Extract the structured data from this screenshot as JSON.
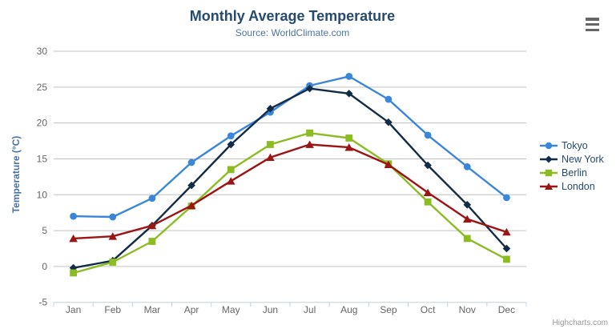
{
  "ui": {
    "menu_icon": "hamburger-icon"
  },
  "chart_data": {
    "type": "line",
    "title": "Monthly Average Temperature",
    "subtitle": "Source: WorldClimate.com",
    "xlabel": "",
    "ylabel": "Temperature (°C)",
    "ylim": [
      -5,
      30
    ],
    "ytick_interval": 5,
    "grid": true,
    "legend_position": "right",
    "credits": "Highcharts.com",
    "categories": [
      "Jan",
      "Feb",
      "Mar",
      "Apr",
      "May",
      "Jun",
      "Jul",
      "Aug",
      "Sep",
      "Oct",
      "Nov",
      "Dec"
    ],
    "series": [
      {
        "name": "Tokyo",
        "color": "#3a87d9",
        "marker": "circle",
        "values": [
          7.0,
          6.9,
          9.5,
          14.5,
          18.2,
          21.5,
          25.2,
          26.5,
          23.3,
          18.3,
          13.9,
          9.6
        ]
      },
      {
        "name": "New York",
        "color": "#122c47",
        "marker": "diamond",
        "values": [
          -0.2,
          0.8,
          5.7,
          11.3,
          17.0,
          22.0,
          24.8,
          24.1,
          20.1,
          14.1,
          8.6,
          2.5
        ]
      },
      {
        "name": "Berlin",
        "color": "#8bbc21",
        "marker": "square",
        "values": [
          -0.9,
          0.6,
          3.5,
          8.4,
          13.5,
          17.0,
          18.6,
          17.9,
          14.3,
          9.0,
          3.9,
          1.0
        ]
      },
      {
        "name": "London",
        "color": "#9c1515",
        "marker": "triangle",
        "values": [
          3.9,
          4.2,
          5.7,
          8.5,
          11.9,
          15.2,
          17.0,
          16.6,
          14.2,
          10.3,
          6.6,
          4.8
        ]
      }
    ],
    "colors": {
      "grid": "#c0c0c0",
      "axis_line": "#c0d0e0",
      "axis_labels": "#666666",
      "title": "#274b6d",
      "subtitle": "#4d759e",
      "axis_title": "#4572a7",
      "legend_text": "#274b6d",
      "credits": "#999999"
    }
  }
}
